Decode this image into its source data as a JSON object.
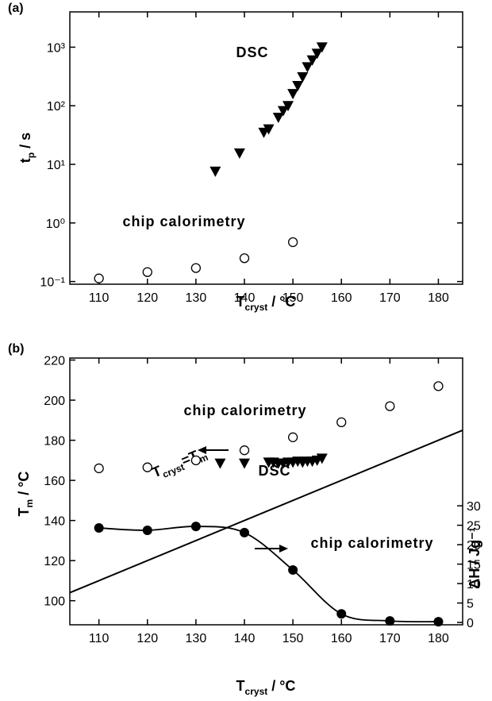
{
  "chart_data": [
    {
      "type": "scatter",
      "panel_label": "(a)",
      "log_y": true,
      "xlabel": [
        "T",
        "cryst",
        " / °C"
      ],
      "ylabel": [
        "t",
        "p",
        " / s"
      ],
      "xlim": [
        104,
        185
      ],
      "xticks": [
        110,
        120,
        130,
        140,
        150,
        160,
        170,
        180
      ],
      "ylim": [
        0.09,
        4000
      ],
      "yticks": [
        {
          "value": 0.1,
          "label": "10⁻¹"
        },
        {
          "value": 1,
          "label": "10⁰"
        },
        {
          "value": 10,
          "label": "10¹"
        },
        {
          "value": 100,
          "label": "10²"
        },
        {
          "value": 1000,
          "label": "10³"
        }
      ],
      "annotations": [
        "DSC",
        "chip calorimetry"
      ],
      "series": [
        {
          "marker": "triangle-down",
          "color": "#000000",
          "x": [
            134,
            139,
            144,
            145,
            147,
            148,
            149,
            150,
            151,
            152,
            153,
            154,
            155,
            156
          ],
          "values": [
            7.6,
            15.5,
            35,
            40,
            63,
            82,
            100,
            160,
            220,
            310,
            460,
            600,
            780,
            1000
          ]
        },
        {
          "marker": "circle-open",
          "color": "#000000",
          "x": [
            110,
            120,
            130,
            140,
            150
          ],
          "values": [
            0.113,
            0.145,
            0.17,
            0.25,
            0.47
          ]
        }
      ]
    },
    {
      "type": "scatter",
      "panel_label": "(b)",
      "xlabel": [
        "T",
        "cryst",
        " / °C"
      ],
      "ylabel": [
        "T",
        "m",
        " / °C"
      ],
      "y2label": "ΔH / Jg⁻¹",
      "xlim": [
        104,
        185
      ],
      "xticks": [
        110,
        120,
        130,
        140,
        150,
        160,
        170,
        180
      ],
      "ylim": [
        88,
        221
      ],
      "yticks": [
        100,
        120,
        140,
        160,
        180,
        200,
        220
      ],
      "y2lim": [
        -0.6,
        68
      ],
      "y2ticks": [
        0,
        5,
        10,
        15,
        20,
        25,
        30
      ],
      "reference_line": {
        "label": [
          "T",
          "cryst",
          "=T",
          "m"
        ]
      },
      "annotations": [
        "chip calorimetry",
        "DSC",
        "chip calorimetry"
      ],
      "series": [
        {
          "marker": "circle-open",
          "color": "#000000",
          "x": [
            110,
            120,
            130,
            140,
            150,
            160,
            170,
            180
          ],
          "values": [
            166,
            166.5,
            170,
            175,
            181.5,
            189,
            197,
            207
          ]
        },
        {
          "marker": "triangle-down",
          "color": "#000000",
          "x": [
            135,
            140,
            145,
            146,
            147,
            148,
            149,
            150,
            151,
            152,
            153,
            154,
            155,
            156
          ],
          "values": [
            168.5,
            168.5,
            169,
            169,
            168.5,
            168.5,
            169,
            169,
            169.5,
            169,
            169.5,
            169.5,
            170,
            171
          ]
        },
        {
          "marker": "circle-filled",
          "color": "#000000",
          "axis": "y2",
          "line": true,
          "x": [
            110,
            120,
            130,
            140,
            150,
            160,
            170,
            180
          ],
          "values": [
            24.3,
            23.7,
            24.7,
            23.1,
            13.5,
            2.2,
            0.4,
            0.2
          ]
        }
      ]
    }
  ]
}
